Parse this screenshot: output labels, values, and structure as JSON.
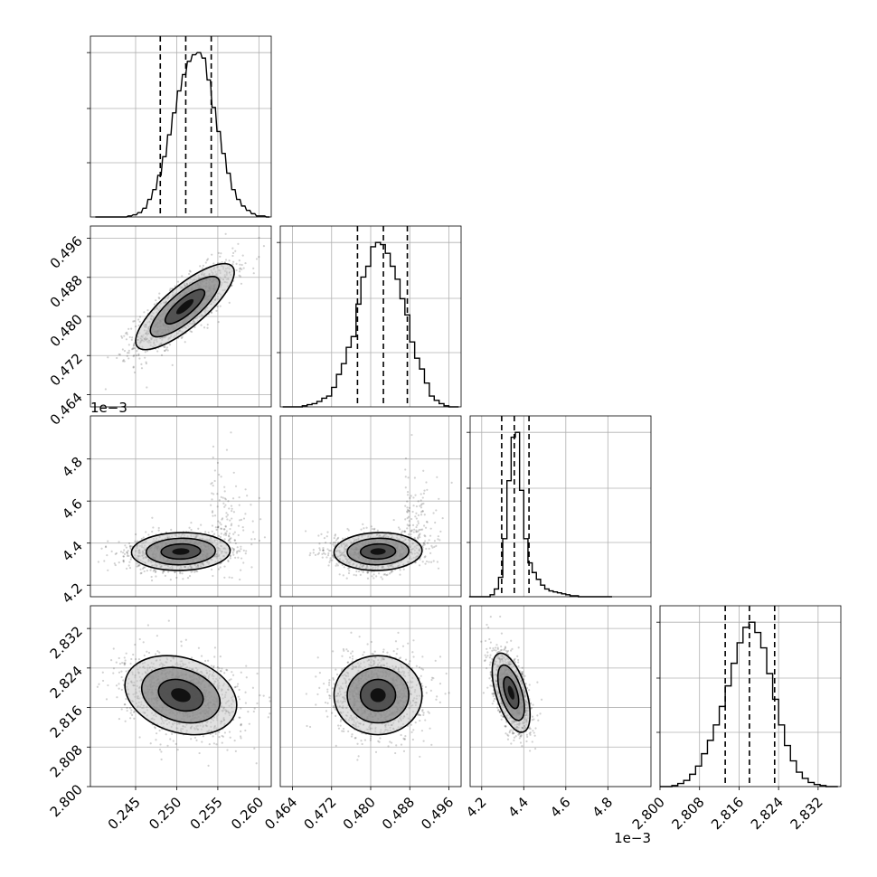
{
  "chart_data": {
    "type": "corner",
    "grid": true,
    "parameters": [
      {
        "range": [
          0.2395,
          0.2615
        ],
        "ticks": [
          0.245,
          0.25,
          0.255,
          0.26
        ],
        "tick_labels": [
          "0.245",
          "0.250",
          "0.255",
          "0.260"
        ],
        "quantiles": [
          0.248,
          0.2511,
          0.2542
        ],
        "offset_text": ""
      },
      {
        "range": [
          0.4615,
          0.4985
        ],
        "ticks": [
          0.464,
          0.472,
          0.48,
          0.488,
          0.496
        ],
        "tick_labels": [
          "0.464",
          "0.472",
          "0.480",
          "0.488",
          "0.496"
        ],
        "quantiles": [
          0.4773,
          0.4826,
          0.4875
        ],
        "offset_text": ""
      },
      {
        "range": [
          4.145,
          5.005
        ],
        "ticks": [
          4.2,
          4.4,
          4.6,
          4.8
        ],
        "tick_labels": [
          "4.2",
          "4.4",
          "4.6",
          "4.8"
        ],
        "quantiles": [
          4.295,
          4.355,
          4.425
        ],
        "offset_text": "1e−3"
      },
      {
        "range": [
          2.8,
          2.8366
        ],
        "ticks": [
          2.8,
          2.808,
          2.816,
          2.824,
          2.832
        ],
        "tick_labels": [
          "2.800",
          "2.808",
          "2.816",
          "2.824",
          "2.832"
        ],
        "quantiles": [
          2.8132,
          2.8181,
          2.8232
        ],
        "offset_text": ""
      }
    ],
    "histograms": [
      {
        "param": 0,
        "centers": [
          0.2403,
          0.2407,
          0.2413,
          0.2419,
          0.2425,
          0.2431,
          0.2437,
          0.2443,
          0.2449,
          0.2455,
          0.2461,
          0.2467,
          0.2473,
          0.2479,
          0.2485,
          0.2491,
          0.2497,
          0.2503,
          0.2509,
          0.2515,
          0.2521,
          0.2527,
          0.2533,
          0.2539,
          0.2545,
          0.2551,
          0.2557,
          0.2563,
          0.2569,
          0.2575,
          0.2581,
          0.2587,
          0.2593,
          0.2599,
          0.2605,
          0.2611
        ],
        "counts": [
          0,
          0,
          0,
          0,
          0,
          0,
          0,
          1,
          2,
          4,
          8,
          16,
          25,
          38,
          55,
          75,
          95,
          115,
          130,
          142,
          148,
          150,
          145,
          125,
          100,
          78,
          58,
          40,
          25,
          16,
          10,
          6,
          3,
          1,
          1,
          0
        ]
      },
      {
        "param": 1,
        "centers": [
          0.4625,
          0.4635,
          0.4645,
          0.4655,
          0.4665,
          0.4675,
          0.4685,
          0.4695,
          0.4705,
          0.4715,
          0.4725,
          0.4735,
          0.4745,
          0.4755,
          0.4765,
          0.4775,
          0.4785,
          0.4795,
          0.4805,
          0.4815,
          0.4825,
          0.4835,
          0.4845,
          0.4855,
          0.4865,
          0.4875,
          0.4885,
          0.4895,
          0.4905,
          0.4915,
          0.4925,
          0.4935,
          0.4945,
          0.4955,
          0.4965,
          0.4975
        ],
        "counts": [
          0,
          0,
          0,
          0,
          1,
          2,
          3,
          5,
          8,
          10,
          18,
          30,
          40,
          55,
          65,
          95,
          120,
          130,
          148,
          152,
          150,
          142,
          130,
          118,
          100,
          85,
          60,
          45,
          35,
          22,
          10,
          6,
          3,
          1,
          0,
          0
        ]
      },
      {
        "param": 2,
        "centers": [
          4.15,
          4.17,
          4.19,
          4.21,
          4.23,
          4.25,
          4.27,
          4.29,
          4.31,
          4.33,
          4.35,
          4.37,
          4.39,
          4.41,
          4.43,
          4.45,
          4.47,
          4.49,
          4.51,
          4.53,
          4.55,
          4.57,
          4.59,
          4.61,
          4.63,
          4.65,
          4.67,
          4.69,
          4.71,
          4.73,
          4.75,
          4.77,
          4.79,
          4.81
        ],
        "counts": [
          0,
          0,
          0,
          0,
          0,
          2,
          8,
          20,
          60,
          120,
          165,
          170,
          110,
          60,
          35,
          25,
          18,
          12,
          8,
          6,
          5,
          4,
          3,
          2,
          1,
          1,
          0,
          0,
          0,
          0,
          0,
          0,
          0,
          0
        ]
      },
      {
        "param": 3,
        "centers": [
          2.8006,
          2.8018,
          2.803,
          2.8042,
          2.8054,
          2.8066,
          2.8078,
          2.809,
          2.8102,
          2.8114,
          2.8126,
          2.8138,
          2.815,
          2.8162,
          2.8174,
          2.8186,
          2.8198,
          2.821,
          2.8222,
          2.8234,
          2.8246,
          2.8258,
          2.827,
          2.8282,
          2.8294,
          2.8306,
          2.8318,
          2.833,
          2.8342,
          2.8354
        ],
        "counts": [
          0,
          0,
          1,
          3,
          6,
          12,
          20,
          32,
          45,
          60,
          78,
          98,
          120,
          140,
          155,
          160,
          150,
          135,
          110,
          85,
          60,
          40,
          25,
          14,
          8,
          4,
          2,
          1,
          0,
          0
        ]
      }
    ],
    "pairs": [
      {
        "x": 0,
        "y": 1,
        "center": [
          0.251,
          0.482
        ],
        "sd": [
          0.003,
          0.0044
        ],
        "corr": 0.8
      },
      {
        "x": 0,
        "y": 2,
        "center": [
          0.2505,
          4.36
        ],
        "sd": [
          0.003,
          0.045
        ],
        "corr": 0.05
      },
      {
        "x": 1,
        "y": 2,
        "center": [
          0.4815,
          4.36
        ],
        "sd": [
          0.0045,
          0.045
        ],
        "corr": 0.05
      },
      {
        "x": 0,
        "y": 3,
        "center": [
          0.2505,
          2.8185
        ],
        "sd": [
          0.0034,
          0.004
        ],
        "corr": -0.25
      },
      {
        "x": 1,
        "y": 3,
        "center": [
          0.4815,
          2.8185
        ],
        "sd": [
          0.0045,
          0.004
        ],
        "corr": 0.0
      },
      {
        "x": 2,
        "y": 3,
        "center": [
          4.34,
          2.819
        ],
        "sd": [
          0.045,
          0.004
        ],
        "corr": -0.55
      }
    ]
  }
}
